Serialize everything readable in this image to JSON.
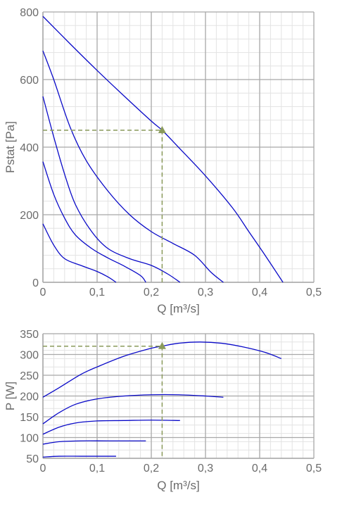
{
  "colors": {
    "curve": "#0a0ac8",
    "operating_point": "#8a9a5b",
    "grid_major": "#a8a8a8",
    "grid_minor": "#e3e3e3",
    "text": "#6b6b6b"
  },
  "chart_data": [
    {
      "type": "line",
      "title": "",
      "xlabel": "Q [m³/s]",
      "ylabel": "Pstat [Pa]",
      "xlim": [
        0,
        0.5
      ],
      "ylim": [
        0,
        800
      ],
      "grid": true,
      "x_ticks": [
        "0",
        "0,1",
        "0,2",
        "0,3",
        "0,4",
        "0,5"
      ],
      "y_ticks": [
        "0",
        "200",
        "400",
        "600",
        "800"
      ],
      "x_tick_values": [
        0,
        0.1,
        0.2,
        0.3,
        0.4,
        0.5
      ],
      "y_tick_values": [
        0,
        200,
        400,
        600,
        800
      ],
      "series": [
        {
          "points": [
            [
              0,
              787
            ],
            [
              0.05,
              706
            ],
            [
              0.1,
              627
            ],
            [
              0.15,
              551
            ],
            [
              0.2,
              477
            ],
            [
              0.22,
              450
            ],
            [
              0.25,
              400
            ],
            [
              0.3,
              315
            ],
            [
              0.35,
              220
            ],
            [
              0.38,
              150
            ],
            [
              0.41,
              80
            ],
            [
              0.443,
              0
            ]
          ]
        },
        {
          "points": [
            [
              0,
              685
            ],
            [
              0.02,
              600
            ],
            [
              0.05,
              460
            ],
            [
              0.08,
              360
            ],
            [
              0.12,
              270
            ],
            [
              0.16,
              200
            ],
            [
              0.2,
              150
            ],
            [
              0.24,
              115
            ],
            [
              0.28,
              80
            ],
            [
              0.31,
              30
            ],
            [
              0.333,
              0
            ]
          ]
        },
        {
          "points": [
            [
              0,
              550
            ],
            [
              0.02,
              430
            ],
            [
              0.04,
              320
            ],
            [
              0.06,
              230
            ],
            [
              0.09,
              150
            ],
            [
              0.12,
              100
            ],
            [
              0.16,
              70
            ],
            [
              0.2,
              50
            ],
            [
              0.23,
              25
            ],
            [
              0.253,
              0
            ]
          ]
        },
        {
          "points": [
            [
              0,
              357
            ],
            [
              0.02,
              260
            ],
            [
              0.04,
              190
            ],
            [
              0.06,
              140
            ],
            [
              0.09,
              100
            ],
            [
              0.12,
              72
            ],
            [
              0.15,
              48
            ],
            [
              0.18,
              20
            ],
            [
              0.19,
              0
            ]
          ]
        },
        {
          "points": [
            [
              0,
              173
            ],
            [
              0.02,
              110
            ],
            [
              0.04,
              70
            ],
            [
              0.07,
              50
            ],
            [
              0.1,
              32
            ],
            [
              0.12,
              16
            ],
            [
              0.135,
              0
            ]
          ]
        }
      ],
      "operating_point": {
        "x": 0.22,
        "y": 450
      }
    },
    {
      "type": "line",
      "title": "",
      "xlabel": "Q [m³/s]",
      "ylabel": "P [W]",
      "xlim": [
        0,
        0.5
      ],
      "ylim": [
        50,
        350
      ],
      "grid": true,
      "x_ticks": [
        "0",
        "0,1",
        "0,2",
        "0,3",
        "0,4",
        "0,5"
      ],
      "y_ticks": [
        "50",
        "100",
        "150",
        "200",
        "250",
        "300",
        "350"
      ],
      "x_tick_values": [
        0,
        0.1,
        0.2,
        0.3,
        0.4,
        0.5
      ],
      "y_tick_values": [
        50,
        100,
        150,
        200,
        250,
        300,
        350
      ],
      "series": [
        {
          "points": [
            [
              0,
              197
            ],
            [
              0.03,
              220
            ],
            [
              0.07,
              252
            ],
            [
              0.1,
              270
            ],
            [
              0.15,
              296
            ],
            [
              0.2,
              315
            ],
            [
              0.22,
              320
            ],
            [
              0.25,
              327
            ],
            [
              0.29,
              330
            ],
            [
              0.33,
              327
            ],
            [
              0.37,
              318
            ],
            [
              0.41,
              305
            ],
            [
              0.44,
              290
            ]
          ]
        },
        {
          "points": [
            [
              0,
              133
            ],
            [
              0.03,
              160
            ],
            [
              0.06,
              180
            ],
            [
              0.1,
              193
            ],
            [
              0.15,
              200
            ],
            [
              0.2,
              203
            ],
            [
              0.25,
              203
            ],
            [
              0.3,
              200
            ],
            [
              0.333,
              197
            ]
          ]
        },
        {
          "points": [
            [
              0,
              108
            ],
            [
              0.03,
              125
            ],
            [
              0.06,
              135
            ],
            [
              0.1,
              140
            ],
            [
              0.15,
              141
            ],
            [
              0.2,
              142
            ],
            [
              0.253,
              141
            ]
          ]
        },
        {
          "points": [
            [
              0,
              84
            ],
            [
              0.03,
              90
            ],
            [
              0.07,
              92
            ],
            [
              0.12,
              92
            ],
            [
              0.19,
              92
            ]
          ]
        },
        {
          "points": [
            [
              0,
              53
            ],
            [
              0.03,
              55
            ],
            [
              0.07,
              55
            ],
            [
              0.11,
              55
            ],
            [
              0.135,
              55
            ]
          ]
        }
      ],
      "operating_point": {
        "x": 0.22,
        "y": 320
      }
    }
  ]
}
